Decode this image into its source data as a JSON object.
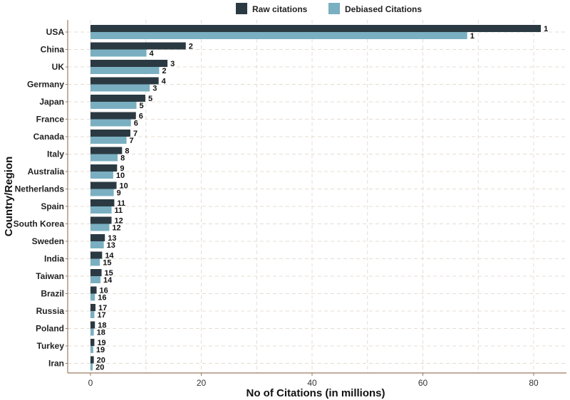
{
  "chart_data": {
    "type": "bar",
    "orientation": "horizontal",
    "title": "",
    "xlabel": "No of Citations (in millions)",
    "ylabel": "Country/Region",
    "xlim": [
      0,
      86
    ],
    "xticks": [
      0,
      20,
      40,
      60,
      80
    ],
    "grid": true,
    "legend_position": "top-center",
    "categories": [
      "USA",
      "China",
      "UK",
      "Germany",
      "Japan",
      "France",
      "Canada",
      "Italy",
      "Australia",
      "Netherlands",
      "Spain",
      "South Korea",
      "Sweden",
      "India",
      "Taiwan",
      "Brazil",
      "Russia",
      "Poland",
      "Turkey",
      "Iran"
    ],
    "series": [
      {
        "name": "Raw citations",
        "color": "#2b3a42",
        "values": [
          81.3,
          17.2,
          13.9,
          12.3,
          9.9,
          8.2,
          7.2,
          5.7,
          4.8,
          4.7,
          4.3,
          3.8,
          2.6,
          2.1,
          2.0,
          1.1,
          0.9,
          0.8,
          0.7,
          0.6
        ],
        "rank_labels": [
          "1",
          "2",
          "3",
          "4",
          "5",
          "6",
          "7",
          "8",
          "9",
          "10",
          "11",
          "12",
          "13",
          "14",
          "15",
          "16",
          "17",
          "18",
          "19",
          "20"
        ]
      },
      {
        "name": "Debiased Citations",
        "color": "#7aafc1",
        "values": [
          68.0,
          10.1,
          12.4,
          10.7,
          8.3,
          7.3,
          6.5,
          4.9,
          4.1,
          4.2,
          3.8,
          3.4,
          2.4,
          1.7,
          1.8,
          0.8,
          0.7,
          0.6,
          0.5,
          0.4
        ],
        "rank_labels": [
          "1",
          "4",
          "2",
          "3",
          "5",
          "6",
          "7",
          "8",
          "10",
          "9",
          "11",
          "12",
          "13",
          "15",
          "14",
          "16",
          "17",
          "18",
          "19",
          "20"
        ]
      }
    ]
  }
}
